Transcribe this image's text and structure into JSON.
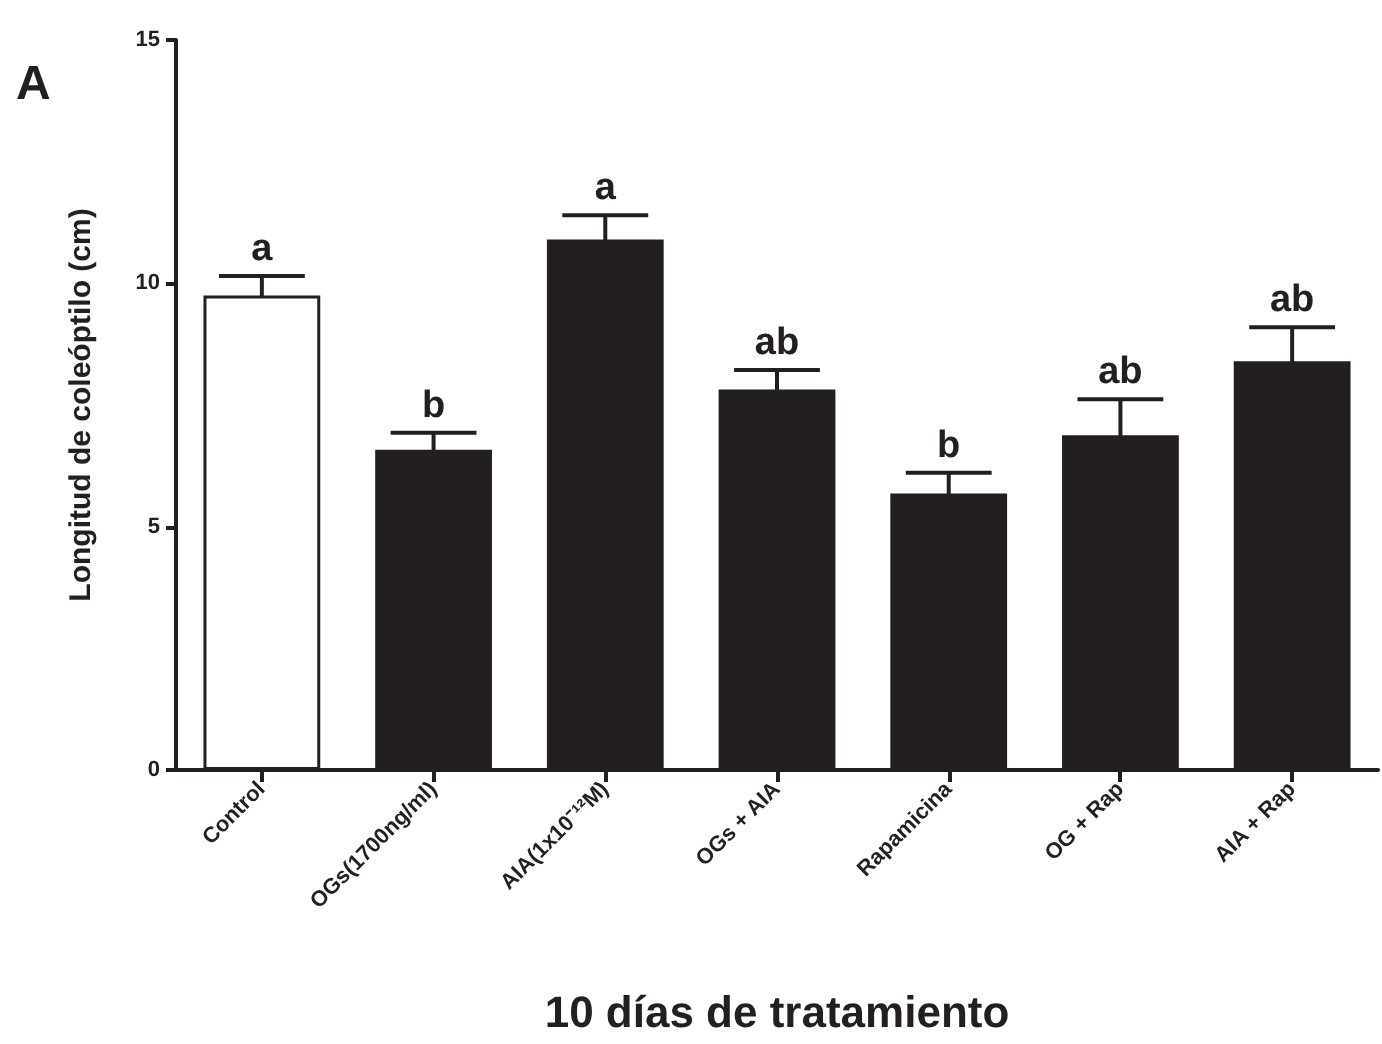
{
  "chart_data": {
    "type": "bar",
    "ylabel": "Longitud de coleóptilo (cm)",
    "xlabel": "10 días de tratamiento",
    "categories": [
      "Control",
      "OGs(1700ng/ml)",
      "AIA(1x10⁻¹²M)",
      "OGs + AIA",
      "Rapamicina",
      "OG + Rap",
      "AIA + Rap"
    ],
    "values": [
      9.75,
      6.58,
      10.9,
      7.82,
      5.68,
      6.88,
      8.4
    ],
    "errors": [
      0.4,
      0.35,
      0.5,
      0.4,
      0.43,
      0.74,
      0.7
    ],
    "colors": [
      "#ffffff",
      "#231f20",
      "#231f20",
      "#231f20",
      "#231f20",
      "#231f20",
      "#231f20"
    ],
    "ylim": [
      0,
      15
    ],
    "yticks": [
      0,
      5,
      10,
      15
    ],
    "grid": false,
    "annotations": [
      "A",
      {
        "text": "a",
        "x": "Control",
        "y": 10.15
      },
      {
        "text": "b",
        "x": "OGs(1700ng/ml)",
        "y": 6.93
      },
      {
        "text": "a",
        "x": "AIA(1x10⁻¹²M)",
        "y": 11.4
      },
      {
        "text": "ab",
        "x": "OGs + AIA",
        "y": 8.22
      },
      {
        "text": "b",
        "x": "Rapamicina",
        "y": 6.11
      },
      {
        "text": "ab",
        "x": "OG + Rap",
        "y": 7.62
      },
      {
        "text": "ab",
        "x": "AIA + Rap",
        "y": 9.1
      }
    ]
  }
}
